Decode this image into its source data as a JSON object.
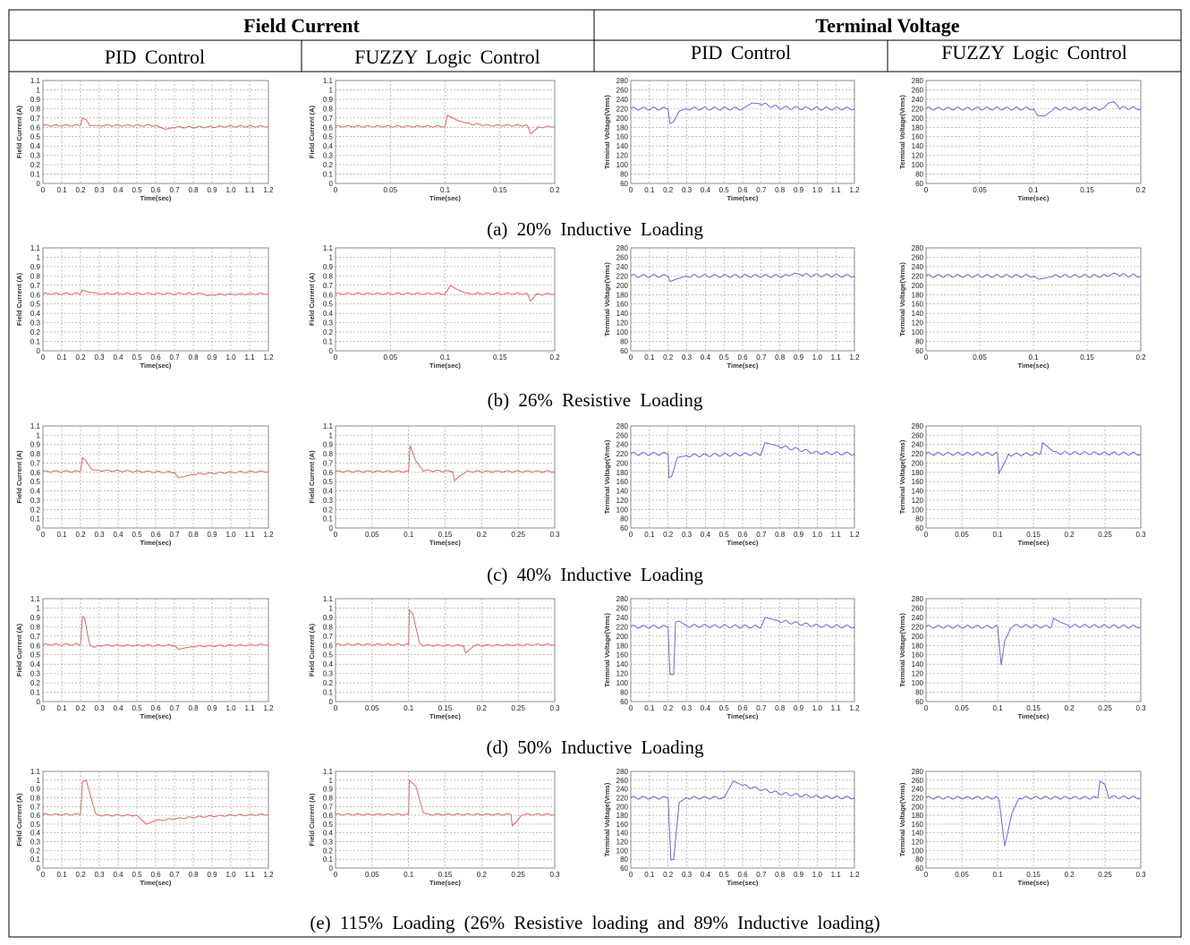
{
  "header": {
    "field_current": "Field Current",
    "terminal_voltage": "Terminal Voltage",
    "sub": [
      "PID Control",
      "FUZZY Logic Control",
      "PID Control",
      "FUZZY Logic Control"
    ]
  },
  "captions": [
    "(a) 20% Inductive Loading",
    "(b) 26% Resistive Loading",
    "(c) 40% Inductive Loading",
    "(d) 50% Inductive Loading",
    "(e) 115% Loading (26% Resistive loading and 89% Inductive loading)"
  ],
  "colors": {
    "field_current_line": "#e06666",
    "terminal_voltage_line": "#6a6acd",
    "grid": "#9a9a9a"
  },
  "axis_labels": {
    "time": "Time(sec)",
    "field_current": "Field Current (A)",
    "terminal_voltage": "Terminal Voltage(Vrms)"
  },
  "chart_data": [
    {
      "row": 0,
      "col": 0,
      "type": "line",
      "xlim": [
        0,
        1.2
      ],
      "xticks": [
        "0",
        "0.1",
        "0.2",
        "0.3",
        "0.4",
        "0.5",
        "0.6",
        "0.7",
        "0.8",
        "0.9",
        "1.0",
        "1.1",
        "1.2"
      ],
      "ylim": [
        0,
        1.1
      ],
      "yticks": [
        "0",
        "0.1",
        "0.2",
        "0.3",
        "0.4",
        "0.5",
        "0.6",
        "0.7",
        "0.8",
        "0.9",
        "1",
        "1.1"
      ],
      "xlabel": "Time(sec)",
      "ylabel": "Field Current (A)",
      "x": [
        0,
        0.2,
        0.21,
        0.23,
        0.25,
        0.3,
        0.45,
        0.6,
        0.65,
        0.7,
        0.8,
        1.0,
        1.2
      ],
      "y": [
        0.62,
        0.62,
        0.7,
        0.68,
        0.62,
        0.62,
        0.62,
        0.62,
        0.58,
        0.6,
        0.6,
        0.61,
        0.61
      ]
    },
    {
      "row": 0,
      "col": 1,
      "type": "line",
      "xlim": [
        0,
        0.2
      ],
      "xticks": [
        "0",
        "0.05",
        "0.1",
        "0.15",
        "0.2"
      ],
      "ylim": [
        0,
        1.1
      ],
      "yticks": [
        "0",
        "0.1",
        "0.2",
        "0.3",
        "0.4",
        "0.5",
        "0.6",
        "0.7",
        "0.8",
        "0.9",
        "1",
        "1.1"
      ],
      "xlabel": "Time(sec)",
      "ylabel": "Field Current (A)",
      "x": [
        0,
        0.1,
        0.102,
        0.11,
        0.12,
        0.14,
        0.175,
        0.178,
        0.185,
        0.2
      ],
      "y": [
        0.61,
        0.61,
        0.73,
        0.68,
        0.64,
        0.62,
        0.62,
        0.53,
        0.6,
        0.61
      ]
    },
    {
      "row": 0,
      "col": 2,
      "type": "line",
      "xlim": [
        0,
        1.2
      ],
      "xticks": [
        "0",
        "0.1",
        "0.2",
        "0.3",
        "0.4",
        "0.5",
        "0.6",
        "0.7",
        "0.8",
        "0.9",
        "1.0",
        "1.1",
        "1.2"
      ],
      "ylim": [
        60,
        280
      ],
      "yticks": [
        "60",
        "80",
        "100",
        "120",
        "140",
        "160",
        "180",
        "200",
        "220",
        "240",
        "260",
        "280"
      ],
      "xlabel": "Time(sec)",
      "ylabel": "Terminal Voltage(Vrms)",
      "x": [
        0,
        0.2,
        0.21,
        0.23,
        0.26,
        0.3,
        0.6,
        0.65,
        0.7,
        0.8,
        1.0,
        1.2
      ],
      "y": [
        220,
        220,
        188,
        192,
        215,
        220,
        220,
        232,
        230,
        222,
        220,
        220
      ]
    },
    {
      "row": 0,
      "col": 3,
      "type": "line",
      "xlim": [
        0,
        0.2
      ],
      "xticks": [
        "0",
        "0.05",
        "0.1",
        "0.15",
        "0.2"
      ],
      "ylim": [
        60,
        280
      ],
      "yticks": [
        "60",
        "80",
        "100",
        "120",
        "140",
        "160",
        "180",
        "200",
        "220",
        "240",
        "260",
        "280"
      ],
      "xlabel": "Time(sec)",
      "ylabel": "Terminal Voltage(Vrms)",
      "x": [
        0,
        0.1,
        0.104,
        0.11,
        0.115,
        0.12,
        0.165,
        0.17,
        0.175,
        0.18,
        0.2
      ],
      "y": [
        220,
        220,
        205,
        204,
        212,
        220,
        220,
        232,
        235,
        222,
        220
      ]
    },
    {
      "row": 1,
      "col": 0,
      "type": "line",
      "xlim": [
        0,
        1.2
      ],
      "xticks": [
        "0",
        "0.1",
        "0.2",
        "0.3",
        "0.4",
        "0.5",
        "0.6",
        "0.7",
        "0.8",
        "0.9",
        "1.0",
        "1.1",
        "1.2"
      ],
      "ylim": [
        0,
        1.1
      ],
      "yticks": [
        "0",
        "0.1",
        "0.2",
        "0.3",
        "0.4",
        "0.5",
        "0.6",
        "0.7",
        "0.8",
        "0.9",
        "1",
        "1.1"
      ],
      "xlabel": "Time(sec)",
      "ylabel": "Field Current (A)",
      "x": [
        0,
        0.2,
        0.21,
        0.24,
        0.3,
        0.85,
        0.87,
        0.9,
        1.2
      ],
      "y": [
        0.61,
        0.61,
        0.65,
        0.63,
        0.61,
        0.61,
        0.59,
        0.6,
        0.61
      ]
    },
    {
      "row": 1,
      "col": 1,
      "type": "line",
      "xlim": [
        0,
        0.2
      ],
      "xticks": [
        "0",
        "0.05",
        "0.1",
        "0.15",
        "0.2"
      ],
      "ylim": [
        0,
        1.1
      ],
      "yticks": [
        "0",
        "0.1",
        "0.2",
        "0.3",
        "0.4",
        "0.5",
        "0.6",
        "0.7",
        "0.8",
        "0.9",
        "1",
        "1.1"
      ],
      "xlabel": "Time(sec)",
      "ylabel": "Field Current (A)",
      "x": [
        0,
        0.1,
        0.105,
        0.11,
        0.12,
        0.175,
        0.178,
        0.183,
        0.2
      ],
      "y": [
        0.61,
        0.61,
        0.7,
        0.66,
        0.61,
        0.61,
        0.53,
        0.6,
        0.61
      ]
    },
    {
      "row": 1,
      "col": 2,
      "type": "line",
      "xlim": [
        0,
        1.2
      ],
      "xticks": [
        "0",
        "0.1",
        "0.2",
        "0.3",
        "0.4",
        "0.5",
        "0.6",
        "0.7",
        "0.8",
        "0.9",
        "1.0",
        "1.1",
        "1.2"
      ],
      "ylim": [
        60,
        280
      ],
      "yticks": [
        "60",
        "80",
        "100",
        "120",
        "140",
        "160",
        "180",
        "200",
        "220",
        "240",
        "260",
        "280"
      ],
      "xlabel": "Time(sec)",
      "ylabel": "Terminal Voltage(Vrms)",
      "x": [
        0,
        0.2,
        0.21,
        0.25,
        0.3,
        0.85,
        0.88,
        0.92,
        1.2
      ],
      "y": [
        220,
        220,
        208,
        214,
        220,
        220,
        226,
        222,
        220
      ]
    },
    {
      "row": 1,
      "col": 3,
      "type": "line",
      "xlim": [
        0,
        0.2
      ],
      "xticks": [
        "0",
        "0.05",
        "0.1",
        "0.15",
        "0.2"
      ],
      "ylim": [
        60,
        280
      ],
      "yticks": [
        "60",
        "80",
        "100",
        "120",
        "140",
        "160",
        "180",
        "200",
        "220",
        "240",
        "260",
        "280"
      ],
      "xlabel": "Time(sec)",
      "ylabel": "Terminal Voltage(Vrms)",
      "x": [
        0,
        0.1,
        0.105,
        0.11,
        0.12,
        0.17,
        0.175,
        0.18,
        0.2
      ],
      "y": [
        220,
        220,
        213,
        215,
        220,
        220,
        226,
        222,
        220
      ]
    },
    {
      "row": 2,
      "col": 0,
      "type": "line",
      "xlim": [
        0,
        1.2
      ],
      "xticks": [
        "0",
        "0.1",
        "0.2",
        "0.3",
        "0.4",
        "0.5",
        "0.6",
        "0.7",
        "0.8",
        "0.9",
        "1.0",
        "1.1",
        "1.2"
      ],
      "ylim": [
        0,
        1.1
      ],
      "yticks": [
        "0",
        "0.1",
        "0.2",
        "0.3",
        "0.4",
        "0.5",
        "0.6",
        "0.7",
        "0.8",
        "0.9",
        "1",
        "1.1"
      ],
      "xlabel": "Time(sec)",
      "ylabel": "Field Current (A)",
      "x": [
        0,
        0.2,
        0.21,
        0.23,
        0.26,
        0.3,
        0.7,
        0.72,
        0.76,
        0.8,
        1.0,
        1.2
      ],
      "y": [
        0.61,
        0.61,
        0.76,
        0.72,
        0.63,
        0.62,
        0.6,
        0.54,
        0.56,
        0.58,
        0.6,
        0.61
      ]
    },
    {
      "row": 2,
      "col": 1,
      "type": "line",
      "xlim": [
        0,
        0.3
      ],
      "xticks": [
        "0",
        "0.05",
        "0.1",
        "0.15",
        "0.2",
        "0.25",
        "0.3"
      ],
      "ylim": [
        0,
        1.1
      ],
      "yticks": [
        "0",
        "0.1",
        "0.2",
        "0.3",
        "0.4",
        "0.5",
        "0.6",
        "0.7",
        "0.8",
        "0.9",
        "1",
        "1.1"
      ],
      "xlabel": "Time(sec)",
      "ylabel": "Field Current (A)",
      "x": [
        0,
        0.1,
        0.102,
        0.11,
        0.12,
        0.16,
        0.163,
        0.17,
        0.18,
        0.3
      ],
      "y": [
        0.61,
        0.61,
        0.89,
        0.72,
        0.62,
        0.61,
        0.51,
        0.56,
        0.61,
        0.61
      ]
    },
    {
      "row": 2,
      "col": 2,
      "type": "line",
      "xlim": [
        0,
        1.2
      ],
      "xticks": [
        "0",
        "0.1",
        "0.2",
        "0.3",
        "0.4",
        "0.5",
        "0.6",
        "0.7",
        "0.8",
        "0.9",
        "1.0",
        "1.1",
        "1.2"
      ],
      "ylim": [
        60,
        280
      ],
      "yticks": [
        "60",
        "80",
        "100",
        "120",
        "140",
        "160",
        "180",
        "200",
        "220",
        "240",
        "260",
        "280"
      ],
      "xlabel": "Time(sec)",
      "ylabel": "Terminal Voltage(Vrms)",
      "x": [
        0,
        0.2,
        0.205,
        0.22,
        0.25,
        0.3,
        0.7,
        0.72,
        0.8,
        1.0,
        1.2
      ],
      "y": [
        220,
        220,
        168,
        172,
        212,
        216,
        220,
        244,
        236,
        222,
        220
      ]
    },
    {
      "row": 2,
      "col": 3,
      "type": "line",
      "xlim": [
        0,
        0.3
      ],
      "xticks": [
        "0",
        "0.05",
        "0.1",
        "0.15",
        "0.2",
        "0.25",
        "0.3"
      ],
      "ylim": [
        60,
        280
      ],
      "yticks": [
        "60",
        "80",
        "100",
        "120",
        "140",
        "160",
        "180",
        "200",
        "220",
        "240",
        "260",
        "280"
      ],
      "xlabel": "Time(sec)",
      "ylabel": "Terminal Voltage(Vrms)",
      "x": [
        0,
        0.1,
        0.102,
        0.108,
        0.115,
        0.16,
        0.163,
        0.17,
        0.18,
        0.3
      ],
      "y": [
        220,
        220,
        178,
        196,
        218,
        220,
        244,
        235,
        222,
        220
      ]
    },
    {
      "row": 3,
      "col": 0,
      "type": "line",
      "xlim": [
        0,
        1.2
      ],
      "xticks": [
        "0",
        "0.1",
        "0.2",
        "0.3",
        "0.4",
        "0.5",
        "0.6",
        "0.7",
        "0.8",
        "0.9",
        "1.0",
        "1.1",
        "1.2"
      ],
      "ylim": [
        0,
        1.1
      ],
      "yticks": [
        "0",
        "0.1",
        "0.2",
        "0.3",
        "0.4",
        "0.5",
        "0.6",
        "0.7",
        "0.8",
        "0.9",
        "1",
        "1.1"
      ],
      "xlabel": "Time(sec)",
      "ylabel": "Field Current (A)",
      "x": [
        0,
        0.2,
        0.21,
        0.22,
        0.25,
        0.27,
        0.3,
        0.7,
        0.72,
        0.8,
        1.2
      ],
      "y": [
        0.61,
        0.61,
        0.91,
        0.9,
        0.6,
        0.58,
        0.6,
        0.6,
        0.56,
        0.59,
        0.61
      ]
    },
    {
      "row": 3,
      "col": 1,
      "type": "line",
      "xlim": [
        0,
        0.3
      ],
      "xticks": [
        "0",
        "0.05",
        "0.1",
        "0.15",
        "0.2",
        "0.25",
        "0.3"
      ],
      "ylim": [
        0,
        1.1
      ],
      "yticks": [
        "0",
        "0.1",
        "0.2",
        "0.3",
        "0.4",
        "0.5",
        "0.6",
        "0.7",
        "0.8",
        "0.9",
        "1",
        "1.1"
      ],
      "xlabel": "Time(sec)",
      "ylabel": "Field Current (A)",
      "x": [
        0,
        0.1,
        0.101,
        0.106,
        0.115,
        0.12,
        0.175,
        0.178,
        0.19,
        0.3
      ],
      "y": [
        0.61,
        0.61,
        0.98,
        0.93,
        0.62,
        0.6,
        0.6,
        0.52,
        0.6,
        0.61
      ]
    },
    {
      "row": 3,
      "col": 2,
      "type": "line",
      "xlim": [
        0,
        1.2
      ],
      "xticks": [
        "0",
        "0.1",
        "0.2",
        "0.3",
        "0.4",
        "0.5",
        "0.6",
        "0.7",
        "0.8",
        "0.9",
        "1.0",
        "1.1",
        "1.2"
      ],
      "ylim": [
        60,
        280
      ],
      "yticks": [
        "60",
        "80",
        "100",
        "120",
        "140",
        "160",
        "180",
        "200",
        "220",
        "240",
        "260",
        "280"
      ],
      "xlabel": "Time(sec)",
      "ylabel": "Terminal Voltage(Vrms)",
      "x": [
        0,
        0.2,
        0.21,
        0.23,
        0.24,
        0.26,
        0.3,
        0.7,
        0.72,
        0.8,
        1.0,
        1.2
      ],
      "y": [
        220,
        220,
        118,
        118,
        230,
        232,
        222,
        220,
        240,
        232,
        222,
        220
      ]
    },
    {
      "row": 3,
      "col": 3,
      "type": "line",
      "xlim": [
        0,
        0.3
      ],
      "xticks": [
        "0",
        "0.05",
        "0.1",
        "0.15",
        "0.2",
        "0.25",
        "0.3"
      ],
      "ylim": [
        60,
        280
      ],
      "yticks": [
        "60",
        "80",
        "100",
        "120",
        "140",
        "160",
        "180",
        "200",
        "220",
        "240",
        "260",
        "280"
      ],
      "xlabel": "Time(sec)",
      "ylabel": "Terminal Voltage(Vrms)",
      "x": [
        0,
        0.1,
        0.105,
        0.11,
        0.12,
        0.175,
        0.178,
        0.185,
        0.2,
        0.3
      ],
      "y": [
        220,
        220,
        138,
        190,
        222,
        220,
        238,
        232,
        222,
        220
      ]
    },
    {
      "row": 4,
      "col": 0,
      "type": "line",
      "xlim": [
        0,
        1.2
      ],
      "xticks": [
        "0",
        "0.1",
        "0.2",
        "0.3",
        "0.4",
        "0.5",
        "0.6",
        "0.7",
        "0.8",
        "0.9",
        "1.0",
        "1.1",
        "1.2"
      ],
      "ylim": [
        0,
        1.1
      ],
      "yticks": [
        "0",
        "0.1",
        "0.2",
        "0.3",
        "0.4",
        "0.5",
        "0.6",
        "0.7",
        "0.8",
        "0.9",
        "1",
        "1.1"
      ],
      "xlabel": "Time(sec)",
      "ylabel": "Field Current (A)",
      "x": [
        0,
        0.2,
        0.21,
        0.23,
        0.28,
        0.3,
        0.5,
        0.55,
        0.6,
        0.8,
        1.0,
        1.2
      ],
      "y": [
        0.61,
        0.61,
        0.98,
        1.0,
        0.62,
        0.6,
        0.6,
        0.5,
        0.54,
        0.58,
        0.6,
        0.61
      ]
    },
    {
      "row": 4,
      "col": 1,
      "type": "line",
      "xlim": [
        0,
        0.3
      ],
      "xticks": [
        "0",
        "0.05",
        "0.1",
        "0.15",
        "0.2",
        "0.25",
        "0.3"
      ],
      "ylim": [
        0,
        1.1
      ],
      "yticks": [
        "0",
        "0.1",
        "0.2",
        "0.3",
        "0.4",
        "0.5",
        "0.6",
        "0.7",
        "0.8",
        "0.9",
        "1",
        "1.1"
      ],
      "xlabel": "Time(sec)",
      "ylabel": "Field Current (A)",
      "x": [
        0,
        0.1,
        0.101,
        0.11,
        0.12,
        0.125,
        0.24,
        0.242,
        0.25,
        0.255,
        0.3
      ],
      "y": [
        0.61,
        0.61,
        1.0,
        0.93,
        0.63,
        0.61,
        0.61,
        0.48,
        0.55,
        0.61,
        0.61
      ]
    },
    {
      "row": 4,
      "col": 2,
      "type": "line",
      "xlim": [
        0,
        1.2
      ],
      "xticks": [
        "0",
        "0.1",
        "0.2",
        "0.3",
        "0.4",
        "0.5",
        "0.6",
        "0.7",
        "0.8",
        "0.9",
        "1.0",
        "1.1",
        "1.2"
      ],
      "ylim": [
        60,
        280
      ],
      "yticks": [
        "60",
        "80",
        "100",
        "120",
        "140",
        "160",
        "180",
        "200",
        "220",
        "240",
        "260",
        "280"
      ],
      "xlabel": "Time(sec)",
      "ylabel": "Terminal Voltage(Vrms)",
      "x": [
        0,
        0.2,
        0.215,
        0.23,
        0.26,
        0.3,
        0.5,
        0.55,
        0.6,
        0.8,
        1.0,
        1.2
      ],
      "y": [
        220,
        220,
        78,
        80,
        210,
        220,
        220,
        258,
        248,
        230,
        222,
        220
      ]
    },
    {
      "row": 4,
      "col": 3,
      "type": "line",
      "xlim": [
        0,
        0.3
      ],
      "xticks": [
        "0",
        "0.05",
        "0.1",
        "0.15",
        "0.2",
        "0.25",
        "0.3"
      ],
      "ylim": [
        60,
        280
      ],
      "yticks": [
        "60",
        "80",
        "100",
        "120",
        "140",
        "160",
        "180",
        "200",
        "220",
        "240",
        "260",
        "280"
      ],
      "xlabel": "Time(sec)",
      "ylabel": "Terminal Voltage(Vrms)",
      "x": [
        0,
        0.1,
        0.102,
        0.11,
        0.12,
        0.13,
        0.24,
        0.243,
        0.25,
        0.255,
        0.3
      ],
      "y": [
        220,
        220,
        215,
        110,
        185,
        220,
        220,
        258,
        250,
        222,
        220
      ]
    }
  ]
}
